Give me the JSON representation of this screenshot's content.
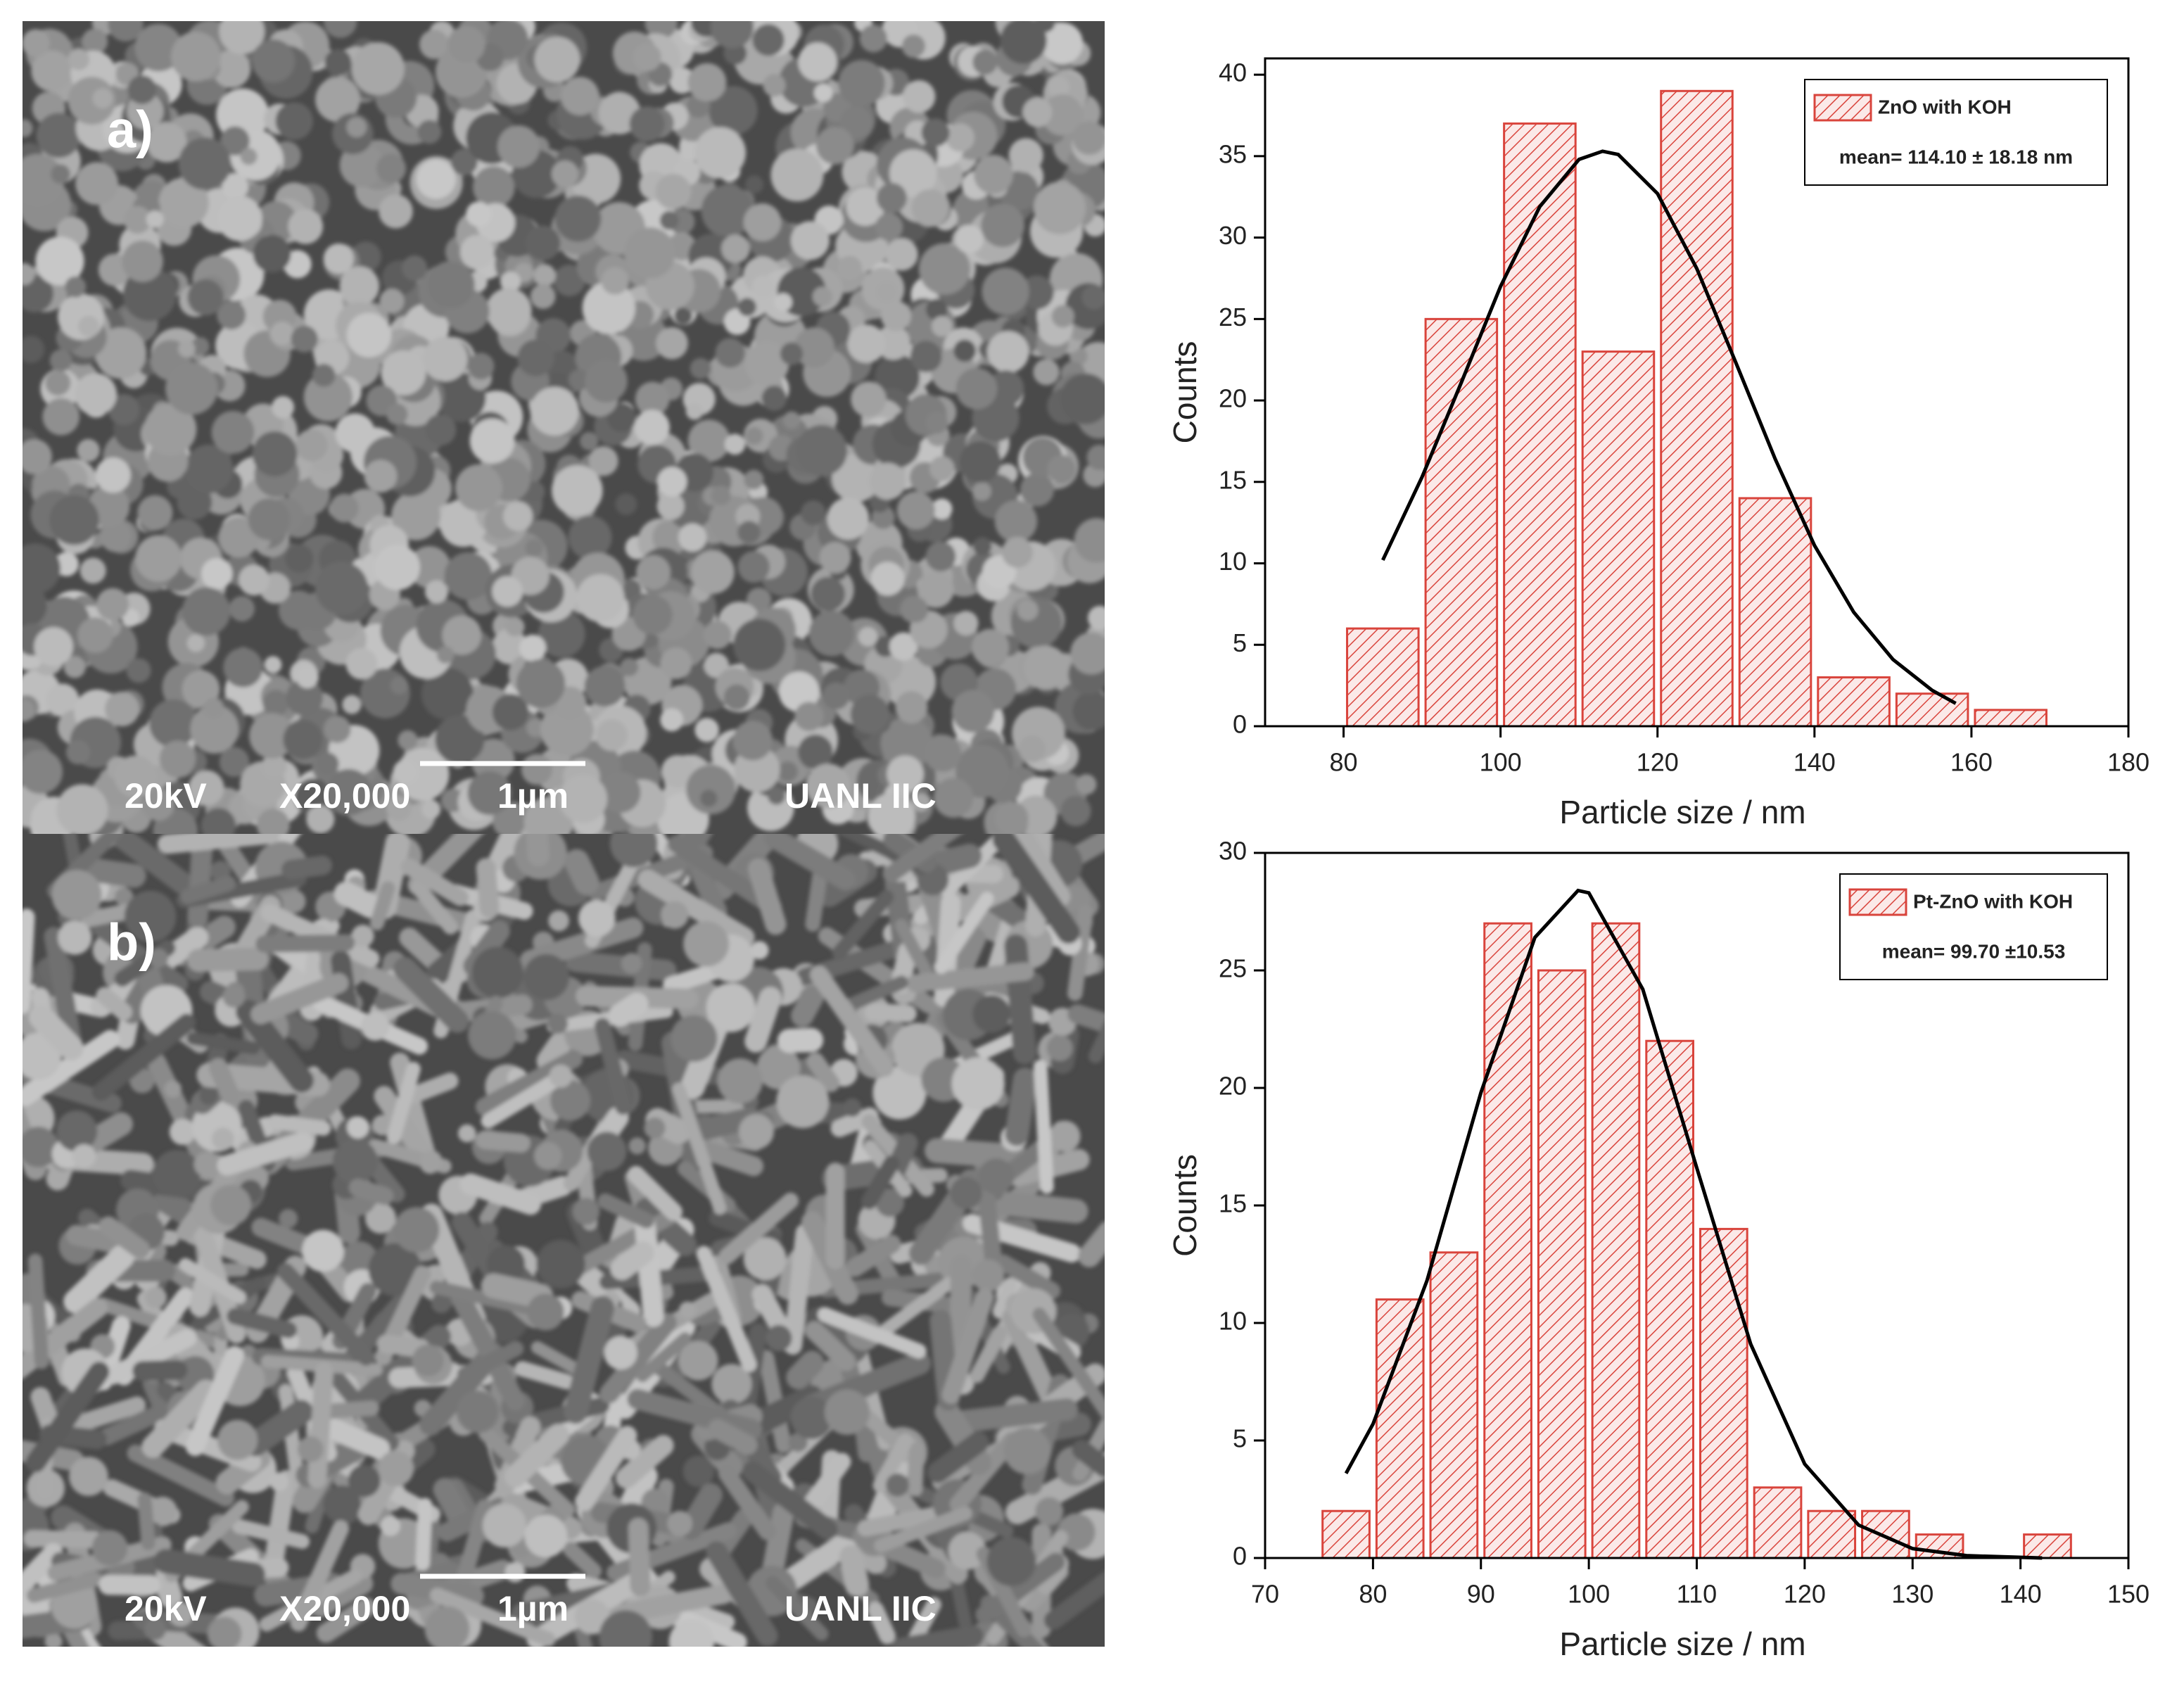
{
  "images": [
    {
      "label": "a)",
      "voltage": "20kV",
      "magnification": "X20,000",
      "scale": "1µm",
      "lab": "UANL IIC"
    },
    {
      "label": "b)",
      "voltage": "20kV",
      "magnification": "X20,000",
      "scale": "1µm",
      "lab": "UANL IIC"
    }
  ],
  "chart_data": [
    {
      "type": "histogram",
      "x_label": "Particle size / nm",
      "y_label": "Counts",
      "bins": [
        80,
        90,
        100,
        110,
        120,
        130,
        140,
        150,
        160,
        170
      ],
      "series": [
        {
          "name": "ZnO with KOH",
          "color": "#d9443c",
          "values": [
            6,
            25,
            37,
            23,
            39,
            14,
            3,
            2,
            1
          ]
        }
      ],
      "annotation": "mean= 114.10 ± 18.18 nm",
      "fit": {
        "color": "#000000",
        "x": [
          85,
          90,
          95,
          100,
          105,
          110,
          113,
          115,
          120,
          125,
          130,
          135,
          140,
          145,
          150,
          155,
          158
        ],
        "values": [
          10.2,
          15.3,
          21.1,
          27.0,
          31.9,
          34.8,
          35.3,
          35.1,
          32.7,
          28.1,
          22.3,
          16.4,
          11.1,
          7.0,
          4.1,
          2.2,
          1.4
        ]
      },
      "xlim": [
        70,
        180
      ],
      "xticks": [
        80,
        100,
        120,
        140,
        160,
        180
      ],
      "ylim": [
        0,
        41
      ],
      "yticks": [
        0,
        5,
        10,
        15,
        20,
        25,
        30,
        35,
        40
      ]
    },
    {
      "type": "histogram",
      "x_label": "Particle size / nm",
      "y_label": "Counts",
      "bins": [
        75,
        80,
        85,
        90,
        95,
        100,
        105,
        110,
        115,
        120,
        125,
        130,
        135,
        140,
        145
      ],
      "series": [
        {
          "name": "Pt-ZnO with KOH",
          "color": "#d9443c",
          "values": [
            2,
            11,
            13,
            27,
            25,
            27,
            22,
            14,
            3,
            2,
            2,
            1,
            0,
            1
          ]
        }
      ],
      "annotation": "mean= 99.70 ±10.53",
      "fit": {
        "color": "#000000",
        "x": [
          77.5,
          80,
          85,
          90,
          95,
          99,
          100,
          105,
          110,
          115,
          120,
          125,
          130,
          135,
          142
        ],
        "values": [
          3.6,
          5.7,
          11.8,
          19.8,
          26.4,
          28.4,
          28.3,
          24.2,
          16.6,
          9.1,
          4.0,
          1.4,
          0.4,
          0.1,
          0.0
        ]
      },
      "xlim": [
        70,
        150
      ],
      "xticks": [
        70,
        80,
        90,
        100,
        110,
        120,
        130,
        140,
        150
      ],
      "ylim": [
        0,
        30
      ],
      "yticks": [
        0,
        5,
        10,
        15,
        20,
        25,
        30
      ]
    }
  ]
}
